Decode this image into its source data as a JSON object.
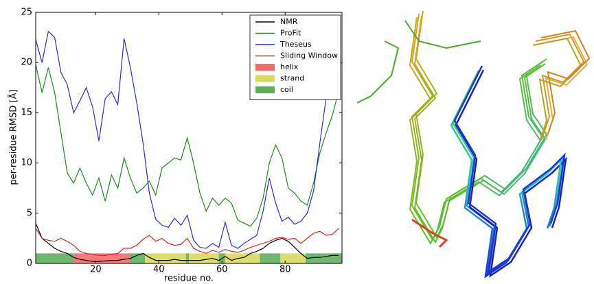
{
  "chart_data": {
    "type": "line",
    "xlabel": "residue no.",
    "ylabel": "per-residue RMSD [Å]",
    "xlim": [
      1,
      98
    ],
    "ylim": [
      0,
      25
    ],
    "xticks": [
      20,
      40,
      60,
      80
    ],
    "yticks": [
      0,
      5,
      10,
      15,
      20,
      25
    ],
    "legend": "upper right",
    "x": [
      1,
      3,
      5,
      7,
      9,
      11,
      13,
      15,
      17,
      19,
      21,
      23,
      25,
      27,
      29,
      31,
      33,
      35,
      37,
      39,
      41,
      43,
      45,
      47,
      49,
      51,
      53,
      55,
      57,
      59,
      61,
      63,
      65,
      67,
      69,
      71,
      73,
      75,
      77,
      79,
      81,
      83,
      85,
      87,
      89,
      91,
      93,
      95,
      97
    ],
    "series": [
      {
        "name": "NMR",
        "color": "#000000",
        "values": [
          4,
          2.5,
          2,
          1.5,
          1.2,
          1,
          0.6,
          0.4,
          0.3,
          0.2,
          0.2,
          0.25,
          0.3,
          0.3,
          0.4,
          0.5,
          0.8,
          1,
          0.6,
          0.3,
          0.3,
          0.3,
          0.4,
          0.3,
          0.3,
          0.3,
          0.3,
          0.4,
          0.5,
          0.3,
          0.7,
          0.3,
          0.5,
          0.6,
          1,
          1.2,
          1.5,
          2,
          2.3,
          2.5,
          2.2,
          1.6,
          1,
          0.5,
          0.6,
          0.6,
          0.7,
          0.8,
          0.8
        ]
      },
      {
        "name": "ProFit",
        "color": "#1a8a1a",
        "values": [
          19.8,
          17,
          19.5,
          17,
          13,
          9,
          8,
          9.5,
          8,
          6.8,
          8.5,
          6.2,
          8.8,
          7.5,
          10.5,
          8.5,
          7,
          7.5,
          8.2,
          6.8,
          9.5,
          10,
          10.5,
          10.3,
          12.5,
          10,
          7,
          5.2,
          6.5,
          5.8,
          6.5,
          6,
          4.3,
          4,
          3.7,
          4.5,
          6.5,
          10,
          11.8,
          10.5,
          7.5,
          7,
          6.2,
          5.8,
          8,
          11,
          13,
          14.8,
          17.2
        ]
      },
      {
        "name": "Theseus",
        "color": "#2a2ad8",
        "values": [
          22.3,
          20,
          23.1,
          22.5,
          19,
          17.8,
          15,
          16.2,
          17.5,
          15.6,
          12.2,
          16.4,
          17.1,
          15.8,
          22.4,
          19.5,
          16,
          12,
          7,
          4.4,
          3.8,
          3.6,
          4.5,
          3.8,
          4.8,
          2.3,
          1.6,
          1.5,
          2,
          1.6,
          4.1,
          1.8,
          1.5,
          2,
          2.4,
          2.8,
          5.2,
          8.5,
          6,
          4.2,
          4.6,
          3.9,
          4.2,
          5,
          7.2,
          12,
          16.5,
          18.5,
          20.7
        ]
      },
      {
        "name": "Sliding Window",
        "color": "#e02020",
        "values": [
          3.5,
          2.5,
          2.3,
          2.2,
          2.5,
          2.2,
          1.8,
          1.2,
          1,
          0.9,
          0.8,
          0.8,
          0.9,
          1,
          1.5,
          1.5,
          1.8,
          2.4,
          2.8,
          2.2,
          2.5,
          2,
          1.8,
          1.9,
          2.5,
          1.5,
          1.2,
          1,
          1.3,
          1.1,
          1.4,
          1.2,
          1.1,
          1.3,
          1.6,
          1.8,
          2,
          2.2,
          2.5,
          2.6,
          2.4,
          2.5,
          2,
          2.5,
          3,
          3.2,
          2.8,
          2.9,
          3.5
        ]
      }
    ],
    "structures": [
      {
        "name": "helix",
        "color": "#f26b6b"
      },
      {
        "name": "strand",
        "color": "#d9d95e"
      },
      {
        "name": "coil",
        "color": "#5fae5f"
      }
    ],
    "band_height": 1,
    "regions": [
      {
        "structure": 2,
        "start": 1,
        "end": 13
      },
      {
        "structure": 0,
        "start": 13,
        "end": 31
      },
      {
        "structure": 2,
        "start": 31,
        "end": 35.6
      },
      {
        "structure": 1,
        "start": 35.6,
        "end": 48.6
      },
      {
        "structure": 2,
        "start": 48.6,
        "end": 49.5
      },
      {
        "structure": 1,
        "start": 49.5,
        "end": 59
      },
      {
        "structure": 2,
        "start": 59,
        "end": 61
      },
      {
        "structure": 1,
        "start": 61,
        "end": 72
      },
      {
        "structure": 2,
        "start": 72,
        "end": 78.5
      },
      {
        "structure": 1,
        "start": 78.5,
        "end": 86.5
      },
      {
        "structure": 2,
        "start": 86.5,
        "end": 98
      }
    ]
  }
}
